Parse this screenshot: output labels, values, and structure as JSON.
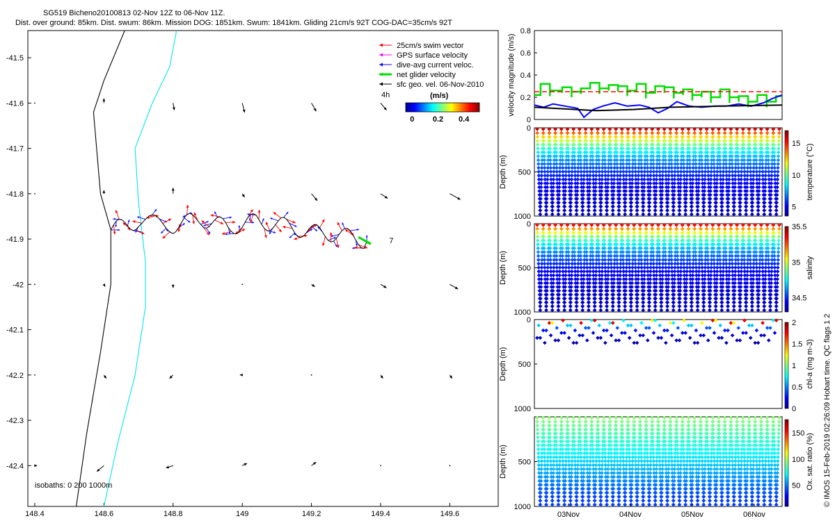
{
  "header": {
    "line1": "SG519 Bicheno20100813 02-Nov 12Z to 06-Nov 11Z.",
    "line2": "Dist. over ground: 85km. Dist. swum: 86km. Mission DOG: 1851km. Swum: 1841km. Gliding 21cm/s 92T COG-DAC=35cm/s 92T"
  },
  "footer_note": "© IMOS 15-Feb-2019 02:26:09 Hobart time. QC flags 1  2",
  "colors": {
    "swim": "#ff0000",
    "gps": "#ff00ff",
    "dac": "#0000ff",
    "net": "#00dd00",
    "geo": "#000000",
    "isobath_0": "#000000",
    "isobath_200": "#00e5ee",
    "dashed": "#ff0000"
  },
  "chart_data": [
    {
      "id": "map",
      "type": "scatter",
      "x_ticks": [
        "148.4",
        "148.6",
        "148.8",
        "149",
        "149.2",
        "149.4",
        "149.6"
      ],
      "y_ticks": [
        "-41.5",
        "-41.6",
        "-41.7",
        "-41.8",
        "-41.9",
        "-42",
        "-42.1",
        "-42.2",
        "-42.3",
        "-42.4"
      ],
      "xlim": [
        148.38,
        149.74
      ],
      "ylim": [
        -42.49,
        -41.44
      ],
      "legend": {
        "placement": "top-right",
        "entries": [
          {
            "label": "25cm/s swim vector",
            "color": "#ff0000",
            "style": "arrow"
          },
          {
            "label": "GPS surface velocity",
            "color": "#ff00ff",
            "style": "arrow"
          },
          {
            "label": "dive-avg current veloc.",
            "color": "#0000ff",
            "style": "arrow"
          },
          {
            "label": "net glider velocity",
            "color": "#00dd00",
            "style": "thick-arrow"
          },
          {
            "label": "sfc geo. vel. 06-Nov-2010",
            "color": "#000000",
            "style": "arrow"
          }
        ]
      },
      "colorbar": {
        "title": "(m/s)",
        "ticks": [
          "0",
          "0.2",
          "0.4"
        ],
        "range": [
          -0.05,
          0.52
        ],
        "side_label": "4h"
      },
      "annotations": [
        {
          "text": "7",
          "lon": 149.425,
          "lat": -41.903
        }
      ],
      "isobath_label": "isobaths: 0    200  1000m",
      "isobaths": [
        {
          "depth": 0,
          "points": [
            [
              148.66,
              -41.44
            ],
            [
              148.6,
              -41.55
            ],
            [
              148.57,
              -41.62
            ],
            [
              148.59,
              -41.8
            ],
            [
              148.62,
              -41.88
            ],
            [
              148.62,
              -42.0
            ],
            [
              148.59,
              -42.15
            ],
            [
              148.55,
              -42.33
            ],
            [
              148.52,
              -42.49
            ]
          ]
        },
        {
          "depth": 200,
          "points": [
            [
              148.81,
              -41.44
            ],
            [
              148.79,
              -41.52
            ],
            [
              148.74,
              -41.6
            ],
            [
              148.69,
              -41.7
            ],
            [
              148.7,
              -41.82
            ],
            [
              148.72,
              -41.95
            ],
            [
              148.72,
              -42.05
            ],
            [
              148.69,
              -42.2
            ],
            [
              148.64,
              -42.35
            ],
            [
              148.6,
              -42.49
            ]
          ]
        }
      ],
      "track": [
        [
          148.62,
          -41.88
        ],
        [
          148.7,
          -41.86
        ],
        [
          148.8,
          -41.87
        ],
        [
          148.88,
          -41.855
        ],
        [
          148.96,
          -41.875
        ],
        [
          149.04,
          -41.86
        ],
        [
          149.12,
          -41.87
        ],
        [
          149.2,
          -41.885
        ],
        [
          149.28,
          -41.89
        ],
        [
          149.36,
          -41.905
        ]
      ],
      "geo_vectors": {
        "lons": [
          148.4,
          148.6,
          148.8,
          149.0,
          149.2,
          149.4,
          149.6
        ],
        "lats": [
          -41.6,
          -41.8,
          -42.0,
          -42.2,
          -42.4
        ],
        "u": [
          [
            0,
            0,
            0.01,
            0.02,
            0.04,
            0.05,
            0.06
          ],
          [
            0,
            0,
            0,
            0.02,
            0.05,
            0.06,
            0.09
          ],
          [
            0,
            0.01,
            0,
            0,
            0.03,
            0.05,
            0.07
          ],
          [
            0,
            0.02,
            -0.03,
            -0.02,
            0,
            0.02,
            0.02
          ],
          [
            0.02,
            -0.06,
            -0.06,
            0.04,
            0.04,
            0,
            0
          ]
        ],
        "v": [
          [
            0.01,
            0.04,
            -0.06,
            -0.08,
            -0.07,
            -0.06,
            -0.02
          ],
          [
            0.01,
            0.03,
            0.05,
            -0.03,
            -0.06,
            -0.04,
            -0.05
          ],
          [
            0,
            -0.02,
            -0.03,
            0,
            -0.02,
            -0.03,
            -0.04
          ],
          [
            0.01,
            -0.03,
            -0.03,
            0,
            0,
            -0.03,
            -0.03
          ],
          [
            0,
            -0.05,
            -0.02,
            0.02,
            0.03,
            0,
            0
          ]
        ]
      }
    },
    {
      "id": "velocity",
      "type": "line",
      "ylabel": "velocity magnitude (m/s)",
      "y_ticks": [
        "0",
        "0.2",
        "0.4",
        "0.6",
        "0.8"
      ],
      "ylim": [
        0,
        0.8
      ],
      "xlim": [
        0,
        4
      ],
      "reference_line": {
        "y": 0.25,
        "style": "dashed",
        "color": "#ff0000"
      },
      "series": [
        {
          "color": "#00dd00",
          "style": "step",
          "x": [
            0,
            0.1,
            0.25,
            0.45,
            0.6,
            0.75,
            0.9,
            1.05,
            1.2,
            1.35,
            1.5,
            1.65,
            1.8,
            1.95,
            2.1,
            2.25,
            2.4,
            2.55,
            2.7,
            2.85,
            3.0,
            3.15,
            3.3,
            3.45,
            3.6,
            3.75,
            3.9
          ],
          "y": [
            0.22,
            0.32,
            0.26,
            0.29,
            0.25,
            0.28,
            0.33,
            0.28,
            0.31,
            0.3,
            0.26,
            0.32,
            0.24,
            0.3,
            0.29,
            0.24,
            0.27,
            0.22,
            0.25,
            0.2,
            0.27,
            0.2,
            0.21,
            0.16,
            0.22,
            0.16,
            0.21
          ]
        },
        {
          "color": "#0000ff",
          "style": "line",
          "x": [
            0,
            0.15,
            0.3,
            0.5,
            0.7,
            0.8,
            0.95,
            1.1,
            1.3,
            1.5,
            1.7,
            1.85,
            2.0,
            2.15,
            2.3,
            2.5,
            2.7,
            2.9,
            3.1,
            3.3,
            3.5,
            3.7,
            3.85,
            4.0
          ],
          "y": [
            0.13,
            0.11,
            0.14,
            0.12,
            0.1,
            0.02,
            0.09,
            0.12,
            0.15,
            0.12,
            0.13,
            0.11,
            0.06,
            0.1,
            0.16,
            0.12,
            0.11,
            0.12,
            0.12,
            0.14,
            0.12,
            0.15,
            0.19,
            0.22
          ]
        },
        {
          "color": "#000000",
          "style": "line",
          "x": [
            0,
            1,
            1.6,
            2.2,
            3,
            4
          ],
          "y": [
            0.11,
            0.08,
            0.09,
            0.11,
            0.12,
            0.13
          ]
        }
      ]
    },
    {
      "id": "temperature",
      "type": "scatter",
      "ylabel": "Depth (m)",
      "clabel": "temperature (°C)",
      "y_ticks": [
        "0",
        "500",
        "1000"
      ],
      "ylim": [
        1000,
        0
      ],
      "c_ticks": [
        "5",
        "10",
        "15"
      ],
      "clim": [
        3.5,
        17
      ],
      "dives": 40,
      "surface_value": 16.5,
      "deep_value": 4,
      "decay_m": 260,
      "depth_top": 15,
      "depth_bottom": 980
    },
    {
      "id": "salinity",
      "type": "scatter",
      "ylabel": "Depth (m)",
      "clabel": "salinity",
      "y_ticks": [
        "0",
        "500",
        "1000"
      ],
      "ylim": [
        1000,
        0
      ],
      "c_ticks": [
        "34.5",
        "35",
        "35.5"
      ],
      "clim": [
        34.3,
        35.5
      ],
      "dives": 40,
      "surface_value": 35.4,
      "deep_value": 34.35,
      "decay_m": 230,
      "depth_top": 15,
      "depth_bottom": 980
    },
    {
      "id": "chlorophyll",
      "type": "scatter",
      "ylabel": "Depth (m)",
      "clabel": "chl-a (mg m-3)",
      "y_ticks": [
        "0",
        "500",
        "1000"
      ],
      "ylim": [
        1000,
        0
      ],
      "c_ticks": [
        "0",
        "0.5",
        "1",
        "1.5",
        "2"
      ],
      "clim": [
        0,
        2
      ],
      "dives": 40,
      "surface_value": 1.8,
      "deep_value": 0.05,
      "decay_m": 60,
      "depth_top": 10,
      "depth_bottom": 290
    },
    {
      "id": "oxygen",
      "type": "scatter",
      "ylabel": "Depth (m)",
      "clabel": "Ox. sat. ratio (%)",
      "y_ticks": [
        "500",
        "1000"
      ],
      "ylim": [
        1000,
        0
      ],
      "c_ticks": [
        "50",
        "100",
        "150"
      ],
      "clim": [
        10,
        175
      ],
      "dives": 40,
      "surface_value": 95,
      "deep_value": 40,
      "decay_m": 400,
      "depth_top": 10,
      "depth_bottom": 980,
      "x_ticks": [
        "03Nov",
        "04Nov",
        "05Nov",
        "06Nov"
      ],
      "xlim": [
        0,
        4
      ]
    }
  ]
}
